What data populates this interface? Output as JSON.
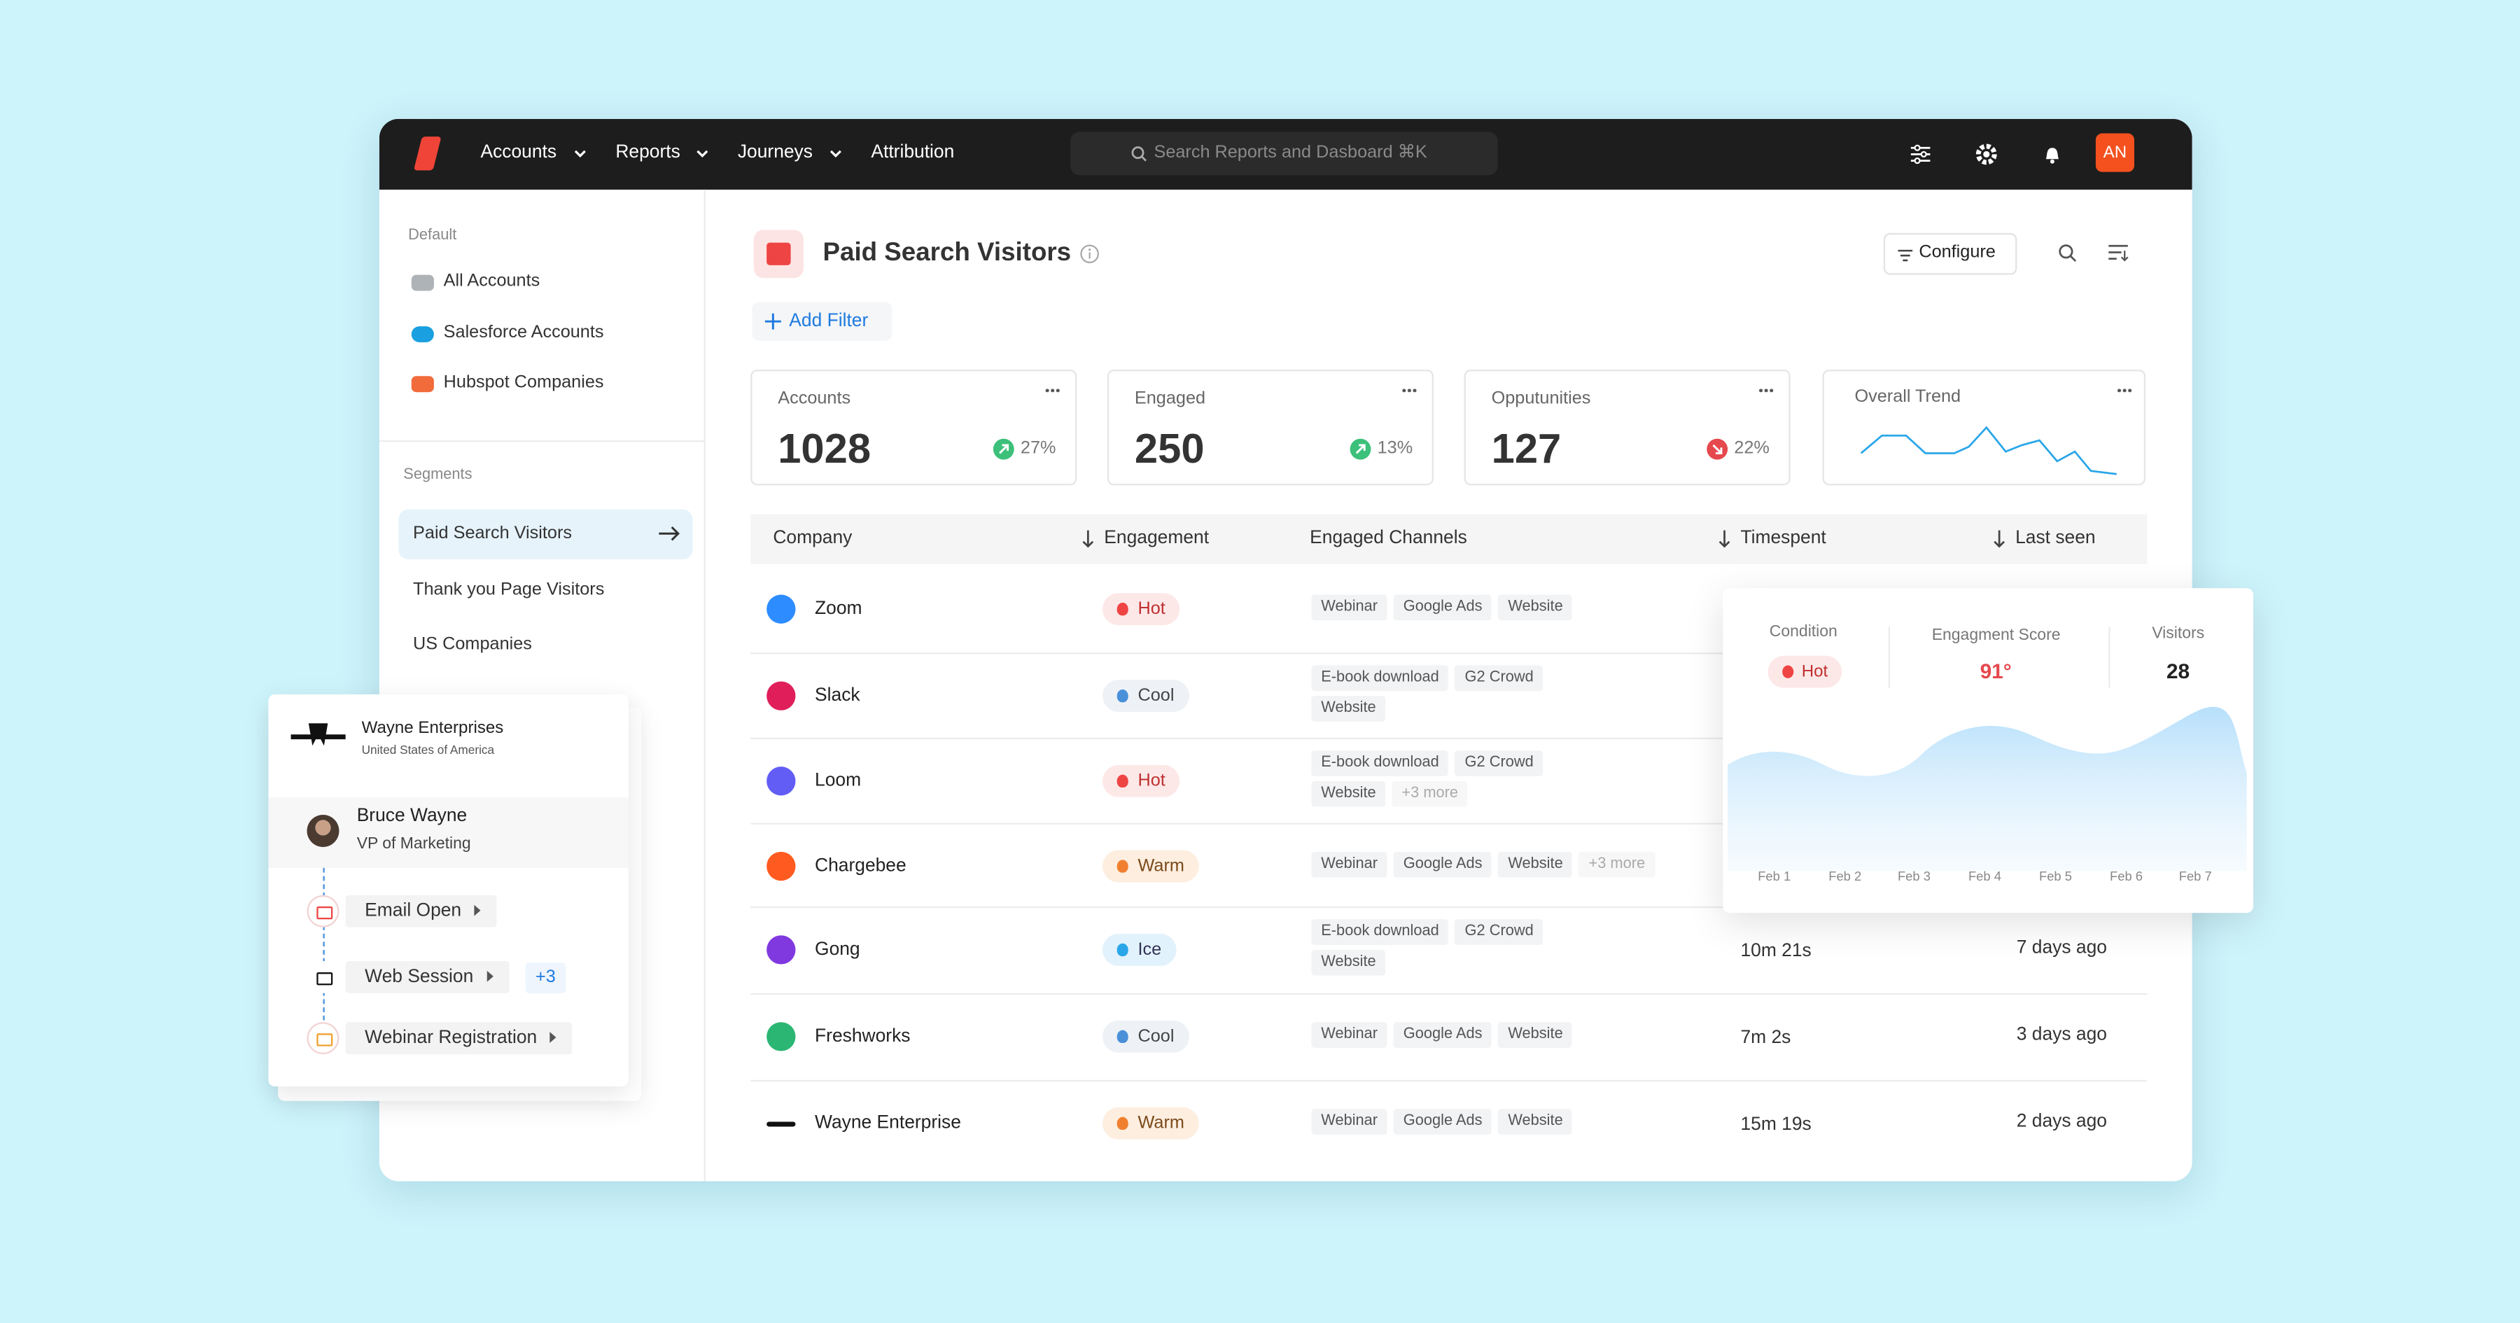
{
  "nav": {
    "items": [
      "Accounts",
      "Reports",
      "Journeys",
      "Attribution"
    ],
    "search": "Search Reports and Dasboard ⌘K",
    "avatar": "AN"
  },
  "sidebar": {
    "default_label": "Default",
    "default_items": [
      "All Accounts",
      "Salesforce Accounts",
      "Hubspot Companies"
    ],
    "segments_label": "Segments",
    "segments": [
      "Paid Search Visitors",
      "Thank you Page Visitors",
      "US Companies"
    ]
  },
  "header": {
    "title": "Paid Search Visitors",
    "configure": "Configure",
    "add_filter": "Add Filter"
  },
  "stats": [
    {
      "label": "Accounts",
      "value": 1028,
      "change": "27%",
      "direction": "up"
    },
    {
      "label": "Engaged",
      "value": 250,
      "change": "13%",
      "direction": "up"
    },
    {
      "label": "Opputunities",
      "value": 127,
      "change": "22%",
      "direction": "down"
    }
  ],
  "trend_label": "Overall Trend",
  "table": {
    "columns": [
      "Company",
      "Engagement",
      "Engaged Channels",
      "Timespent",
      "Last seen"
    ],
    "rows": [
      {
        "company": "Zoom",
        "engagement": "Hot",
        "channels": [
          "Webinar",
          "Google Ads",
          "Website"
        ]
      },
      {
        "company": "Slack",
        "engagement": "Cool",
        "channels": [
          "E-book download",
          "G2 Crowd",
          "Website"
        ]
      },
      {
        "company": "Loom",
        "engagement": "Hot",
        "channels": [
          "E-book download",
          "G2 Crowd",
          "Website"
        ],
        "more": "+3 more"
      },
      {
        "company": "Chargebee",
        "engagement": "Warm",
        "channels": [
          "Webinar",
          "Google Ads",
          "Website"
        ],
        "more": "+3 more"
      },
      {
        "company": "Gong",
        "engagement": "Ice",
        "channels": [
          "E-book download",
          "G2 Crowd",
          "Website"
        ],
        "timespent": "10m 21s",
        "last_seen": "7 days ago"
      },
      {
        "company": "Freshworks",
        "engagement": "Cool",
        "channels": [
          "Webinar",
          "Google Ads",
          "Website"
        ],
        "timespent": "7m 2s",
        "last_seen": "3 days ago"
      },
      {
        "company": "Wayne Enterprise",
        "engagement": "Warm",
        "channels": [
          "Webinar",
          "Google Ads",
          "Website"
        ],
        "timespent": "15m 19s",
        "last_seen": "2 days ago"
      }
    ]
  },
  "popup": {
    "condition_label": "Condition",
    "condition": "Hot",
    "score_label": "Engagment Score",
    "score": "91°",
    "visitors_label": "Visitors",
    "visitors": 28,
    "dates": [
      "Feb 1",
      "Feb 2",
      "Feb 3",
      "Feb 4",
      "Feb 5",
      "Feb 6",
      "Feb 7"
    ]
  },
  "profile": {
    "company": "Wayne Enterprises",
    "country": "United States of America",
    "person": "Bruce Wayne",
    "role": "VP of Marketing",
    "events": [
      "Email Open",
      "Web Session",
      "Webinar Registration"
    ],
    "extra": "+3"
  }
}
